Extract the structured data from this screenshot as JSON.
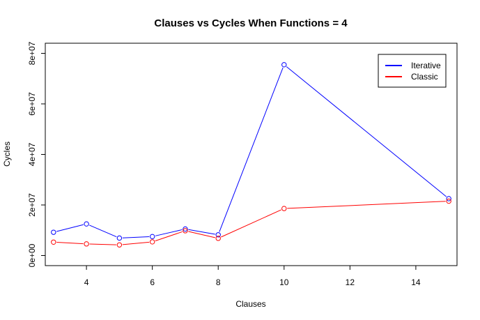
{
  "chart_data": {
    "type": "line",
    "title": "Clauses vs Cycles When Functions = 4",
    "xlabel": "Clauses",
    "ylabel": "Cycles",
    "xlim": [
      2.75,
      15.25
    ],
    "ylim": [
      -4000000,
      84000000
    ],
    "xticks": [
      4,
      6,
      8,
      10,
      12,
      14
    ],
    "xtick_labels": [
      "4",
      "6",
      "8",
      "10",
      "12",
      "14"
    ],
    "yticks": [
      0,
      20000000,
      40000000,
      60000000,
      80000000
    ],
    "ytick_labels": [
      "0e+00",
      "2e+07",
      "4e+07",
      "6e+07",
      "8e+07"
    ],
    "grid": false,
    "legend_position": "top-right",
    "x": [
      3,
      4,
      5,
      6,
      7,
      8,
      10,
      15
    ],
    "series": [
      {
        "name": "Iterative",
        "color": "#0000ff",
        "values": [
          9200000,
          12500000,
          6900000,
          7500000,
          10500000,
          8200000,
          75500000,
          22500000
        ]
      },
      {
        "name": "Classic",
        "color": "#ff0000",
        "values": [
          5300000,
          4600000,
          4200000,
          5400000,
          9800000,
          6800000,
          18600000,
          21500000
        ]
      }
    ]
  }
}
